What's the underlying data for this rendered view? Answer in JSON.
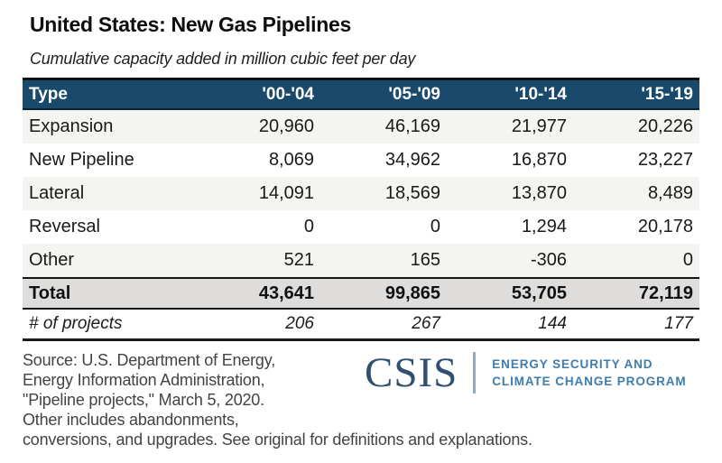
{
  "page": {
    "title": "United States: New Gas Pipelines",
    "subtitle": "Cumulative capacity added in million cubic feet per day"
  },
  "colors": {
    "header_bg": "#1a4a6b",
    "total_row_bg": "#dedddb",
    "shaded_row_bg": "#f4f4f1",
    "csis_navy": "#31506f",
    "program_blue": "#3e7dae"
  },
  "table": {
    "columns": [
      "Type",
      "'00-'04",
      "'05-'09",
      "'10-'14",
      "'15-'19"
    ],
    "rows": [
      {
        "type": "Expansion",
        "values": [
          "20,960",
          "46,169",
          "21,977",
          "20,226"
        ]
      },
      {
        "type": "New Pipeline",
        "values": [
          "8,069",
          "34,962",
          "16,870",
          "23,227"
        ]
      },
      {
        "type": "Lateral",
        "values": [
          "14,091",
          "18,569",
          "13,870",
          "8,489"
        ]
      },
      {
        "type": "Reversal",
        "values": [
          "0",
          "0",
          "1,294",
          "20,178"
        ]
      },
      {
        "type": "Other",
        "values": [
          "521",
          "165",
          "-306",
          "0"
        ]
      }
    ],
    "total": {
      "type": "Total",
      "values": [
        "43,641",
        "99,865",
        "53,705",
        "72,119"
      ]
    },
    "projects": {
      "type": "# of projects",
      "values": [
        "206",
        "267",
        "144",
        "177"
      ]
    }
  },
  "footer": {
    "source_lines": [
      "Source: U.S. Department of Energy,",
      "Energy Information Administration,",
      "\"Pipeline projects,\" March 5, 2020.",
      "Other includes abandonments,",
      "conversions, and upgrades. See original for definitions and explanations."
    ],
    "logo": {
      "wordmark": "CSIS",
      "program_line1": "ENERGY SECURITY AND",
      "program_line2": "CLIMATE CHANGE PROGRAM"
    }
  },
  "chart_data": {
    "type": "table",
    "title": "United States: New Gas Pipelines",
    "subtitle": "Cumulative capacity added in million cubic feet per day",
    "units": "million cubic feet per day",
    "columns": [
      "Type",
      "'00-'04",
      "'05-'09",
      "'10-'14",
      "'15-'19"
    ],
    "rows": [
      [
        "Expansion",
        20960,
        46169,
        21977,
        20226
      ],
      [
        "New Pipeline",
        8069,
        34962,
        16870,
        23227
      ],
      [
        "Lateral",
        14091,
        18569,
        13870,
        8489
      ],
      [
        "Reversal",
        0,
        0,
        1294,
        20178
      ],
      [
        "Other",
        521,
        165,
        -306,
        0
      ],
      [
        "Total",
        43641,
        99865,
        53705,
        72119
      ],
      [
        "# of projects",
        206,
        267,
        144,
        177
      ]
    ]
  }
}
